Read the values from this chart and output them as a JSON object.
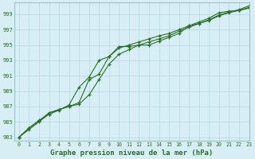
{
  "xlabel": "Graphe pression niveau de la mer (hPa)",
  "ylabel": "",
  "bg_color": "#d7eef4",
  "grid_color": "#b8d8e0",
  "line_color": "#2d6e2d",
  "ylim": [
    982.5,
    1000.5
  ],
  "xlim": [
    -0.5,
    23
  ],
  "yticks": [
    983,
    985,
    987,
    989,
    991,
    993,
    995,
    997,
    999
  ],
  "xticks": [
    0,
    1,
    2,
    3,
    4,
    5,
    6,
    7,
    8,
    9,
    10,
    11,
    12,
    13,
    14,
    15,
    16,
    17,
    18,
    19,
    20,
    21,
    22,
    23
  ],
  "series1": [
    983.0,
    984.2,
    985.1,
    986.2,
    986.6,
    987.0,
    987.5,
    990.5,
    991.2,
    993.5,
    994.8,
    994.8,
    995.0,
    995.0,
    995.5,
    996.0,
    996.5,
    997.5,
    998.0,
    998.5,
    999.2,
    999.4,
    999.5,
    999.8
  ],
  "series2": [
    983.0,
    984.2,
    985.2,
    986.0,
    986.5,
    987.2,
    989.5,
    990.8,
    993.0,
    993.5,
    994.6,
    995.0,
    995.4,
    995.8,
    996.2,
    996.5,
    997.0,
    997.5,
    997.8,
    998.2,
    998.8,
    999.2,
    999.5,
    999.9
  ],
  "series3": [
    983.0,
    984.0,
    985.0,
    986.0,
    986.6,
    987.0,
    987.3,
    988.5,
    990.5,
    992.5,
    993.8,
    994.4,
    995.0,
    995.4,
    995.8,
    996.2,
    996.8,
    997.3,
    997.8,
    998.3,
    998.9,
    999.3,
    999.6,
    1000.1
  ]
}
